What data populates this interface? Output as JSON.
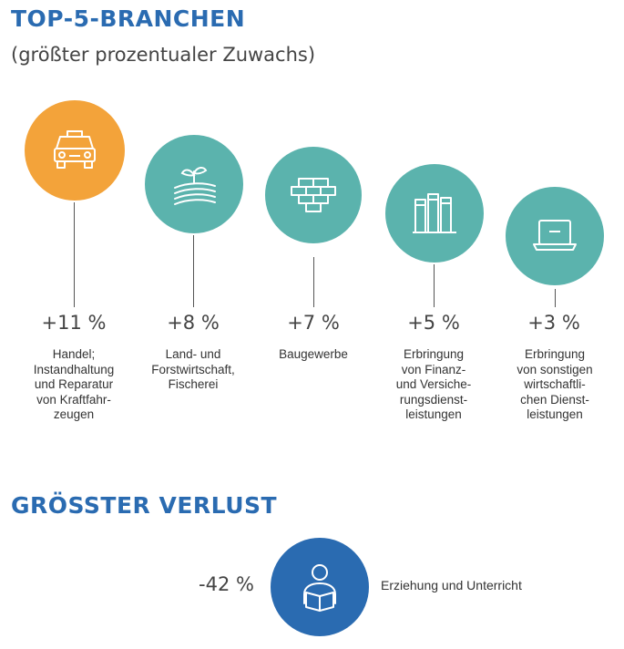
{
  "header": {
    "title": "TOP-5-BRANCHEN",
    "subtitle": "(größter prozentualer Zuwachs)"
  },
  "colors": {
    "title": "#2a6bb1",
    "highlight": "#f3a33a",
    "teal": "#5bb3ad",
    "loss": "#2a6bb1"
  },
  "top": [
    {
      "value": "+11 %",
      "label": [
        "Handel;",
        "Instandhaltung",
        "und Reparatur",
        "von Kraftfahr-",
        "zeugen"
      ],
      "icon": "car-icon"
    },
    {
      "value": "+8 %",
      "label": [
        "Land- und",
        "Forstwirtschaft,",
        "Fischerei"
      ],
      "icon": "plant-field-icon"
    },
    {
      "value": "+7 %",
      "label": [
        "Baugewerbe"
      ],
      "icon": "brick-wall-icon"
    },
    {
      "value": "+5 %",
      "label": [
        "Erbringung",
        "von Finanz-",
        "und Versiche-",
        "rungsdienst-",
        "leistungen"
      ],
      "icon": "binders-icon"
    },
    {
      "value": "+3 %",
      "label": [
        "Erbringung",
        "von sonstigen",
        "wirtschaftli-",
        "chen Dienst-",
        "leistungen"
      ],
      "icon": "laptop-icon"
    }
  ],
  "loss": {
    "title": "GRÖSSTER VERLUST",
    "value": "-42 %",
    "label": "Erziehung und Unterricht",
    "icon": "reading-person-icon"
  }
}
